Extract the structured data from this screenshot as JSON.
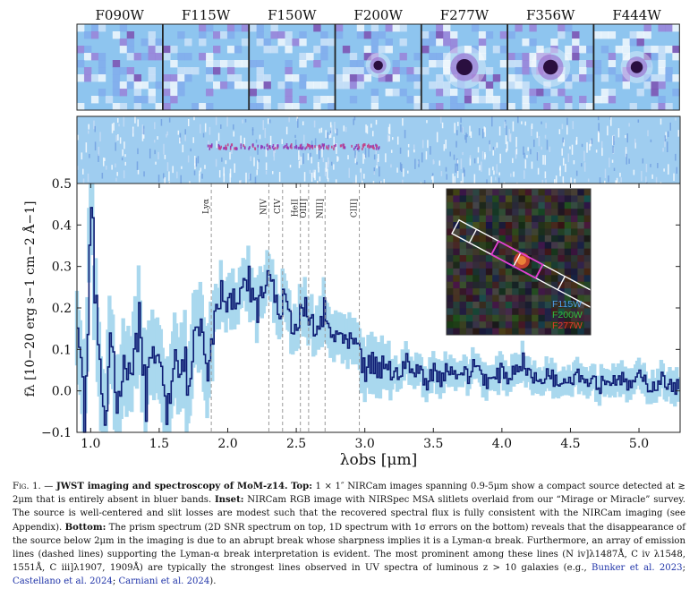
{
  "figure": {
    "bands": [
      "F090W",
      "F115W",
      "F150W",
      "F200W",
      "F277W",
      "F356W",
      "F444W"
    ],
    "lines": [
      "Lyα",
      "NIV",
      "CIV",
      "HeII",
      "OIII]",
      "NIII]",
      "CIII]"
    ],
    "line_wavelengths_um": [
      1.88,
      2.3,
      2.4,
      2.53,
      2.59,
      2.71,
      2.96
    ],
    "ylabel": "f_λ [10^−20 erg s^−1 cm^−2 Å^−1]",
    "xlabel": "λ_obs [μm]",
    "inset_legend": [
      {
        "label": "F115W",
        "color": "#4f9fe8"
      },
      {
        "label": "F200W",
        "color": "#2fbf3f"
      },
      {
        "label": "F277W",
        "color": "#e8382f"
      }
    ],
    "colors": {
      "flux": "#0d1b73",
      "errors": "#a9d8ee",
      "lines": "#9a9a9a",
      "stamp_bg": "#8ec5ef",
      "source": "#2a0f3f"
    }
  },
  "chart_data": {
    "type": "line",
    "title": "",
    "xlabel": "λobs [μm]",
    "ylabel": "fλ [10−20 erg s−1 cm−2 Å−1]",
    "xlim": [
      0.9,
      5.3
    ],
    "ylim": [
      -0.1,
      0.5
    ],
    "x_ticks": [
      1.0,
      1.5,
      2.0,
      2.5,
      3.0,
      3.5,
      4.0,
      4.5,
      5.0
    ],
    "y_ticks": [
      -0.1,
      0.0,
      0.1,
      0.2,
      0.3,
      0.4,
      0.5
    ],
    "grid": false,
    "series": [
      {
        "name": "",
        "x": [
          0.9,
          0.95,
          1.0,
          1.05,
          1.1,
          1.15,
          1.2,
          1.25,
          1.3,
          1.35,
          1.4,
          1.45,
          1.5,
          1.55,
          1.6,
          1.65,
          1.7,
          1.75,
          1.8,
          1.85,
          1.9,
          1.95,
          2.0,
          2.05,
          2.1,
          2.15,
          2.2,
          2.25,
          2.3,
          2.35,
          2.4,
          2.45,
          2.5,
          2.55,
          2.6,
          2.65,
          2.7,
          2.75,
          2.8,
          2.85,
          2.9,
          2.95,
          3.0,
          3.05,
          3.1,
          3.15,
          3.2,
          3.25,
          3.3,
          3.35,
          3.4,
          3.45,
          3.5,
          3.55,
          3.6,
          3.65,
          3.7,
          3.75,
          3.8,
          3.85,
          3.9,
          3.95,
          4.0,
          4.05,
          4.1,
          4.15,
          4.2,
          4.25,
          4.3,
          4.35,
          4.4,
          4.45,
          4.5,
          4.55,
          4.6,
          4.65,
          4.7,
          4.75,
          4.8,
          4.85,
          4.9,
          4.95,
          5.0,
          5.05,
          5.1,
          5.15,
          5.2,
          5.25,
          5.3
        ],
        "y": [
          0.15,
          -0.08,
          0.45,
          0.1,
          -0.05,
          0.12,
          -0.06,
          0.08,
          0.02,
          0.15,
          -0.03,
          0.12,
          0.05,
          -0.02,
          0.08,
          0.1,
          0.04,
          0.12,
          0.16,
          0.05,
          0.2,
          0.24,
          0.22,
          0.21,
          0.23,
          0.27,
          0.19,
          0.23,
          0.3,
          0.2,
          0.21,
          0.18,
          0.15,
          0.2,
          0.16,
          0.14,
          0.19,
          0.12,
          0.15,
          0.1,
          0.12,
          0.08,
          0.05,
          0.06,
          0.04,
          0.08,
          0.03,
          0.05,
          0.07,
          0.04,
          0.05,
          0.02,
          0.05,
          0.03,
          0.06,
          0.04,
          0.05,
          0.03,
          0.07,
          0.04,
          0.02,
          0.03,
          0.05,
          0.03,
          0.06,
          0.07,
          0.04,
          0.02,
          0.03,
          0.05,
          0.01,
          0.04,
          0.03,
          0.05,
          0.02,
          0.04,
          0.01,
          0.03,
          0.02,
          0.04,
          0.01,
          0.02,
          0.03,
          0.02,
          0.01,
          0.03,
          0.02,
          0.0,
          0.02
        ]
      }
    ]
  },
  "inset_legend": {
    "f115w": "F115W",
    "f200w": "F200W",
    "f277w": "F277W"
  },
  "caption": {
    "label": "Fig. 1.",
    "bold_intro": "JWST imaging and spectroscopy of MoM-z14.",
    "top_bold": "Top:",
    "top_text": "1 × 1″ NIRCam images spanning 0.9-5μm show a compact source detected at ≳ 2μm that is entirely absent in bluer bands.",
    "inset_bold": "Inset:",
    "inset_text": "NIRCam RGB image with NIRSpec MSA slitlets overlaid from our “Mirage or Miracle” survey. The source is well-centered and slit losses are modest such that the recovered spectral flux is fully consistent with the NIRCam imaging (see Appendix).",
    "bottom_bold": "Bottom:",
    "bottom_text": "The prism spectrum (2D SNR spectrum on top, 1D spectrum with 1σ errors on the bottom) reveals that the disappearance of the source below 2μm in the imaging is due to an abrupt break whose sharpness implies it is a Lyman-α break. Furthermore, an array of emission lines (dashed lines) supporting the Lyman-α break interpretation is evident. The most prominent among these lines (N iv]λ1487Å, C iv λ1548, 1551Å, C iii]λ1907, 1909Å) are typically the strongest lines observed in UV spectra of luminous z > 10 galaxies (e.g.,",
    "cite1": "Bunker et al. 2023",
    "sep1": ";",
    "cite2": "Castellano et al. 2024",
    "sep2": ";",
    "cite3": "Carniani et al. 2024",
    "end": ")."
  }
}
